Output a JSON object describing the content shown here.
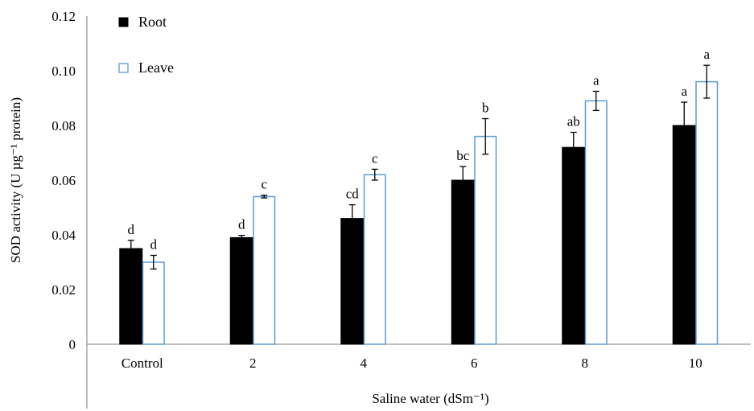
{
  "chart_data": {
    "type": "bar",
    "title": "",
    "xlabel": "Saline water (dSm⁻¹)",
    "ylabel": "SOD activity (U µg⁻¹ protein)",
    "ylim": [
      0,
      0.12
    ],
    "yticks": [
      0,
      0.02,
      0.04,
      0.06,
      0.08,
      0.1,
      0.12
    ],
    "ytick_labels": [
      "0",
      "0.02",
      "0.04",
      "0.06",
      "0.08",
      "0.10",
      "0.12"
    ],
    "categories": [
      "Control",
      "2",
      "4",
      "6",
      "8",
      "10"
    ],
    "legend_position": "top-left",
    "grid": false,
    "series": [
      {
        "name": "Root",
        "fill": "#000000",
        "stroke": "#000000",
        "values": [
          0.035,
          0.039,
          0.046,
          0.06,
          0.072,
          0.08
        ],
        "errors": [
          0.003,
          0.0008,
          0.005,
          0.005,
          0.0055,
          0.0085
        ],
        "letters": [
          "d",
          "d",
          "cd",
          "bc",
          "ab",
          "a"
        ]
      },
      {
        "name": "Leave",
        "fill": "#ffffff",
        "stroke": "#5b9bd5",
        "values": [
          0.03,
          0.054,
          0.062,
          0.076,
          0.089,
          0.096
        ],
        "errors": [
          0.0025,
          0.0005,
          0.002,
          0.0065,
          0.0035,
          0.006
        ],
        "letters": [
          "d",
          "c",
          "c",
          "b",
          "a",
          "a"
        ]
      }
    ]
  }
}
